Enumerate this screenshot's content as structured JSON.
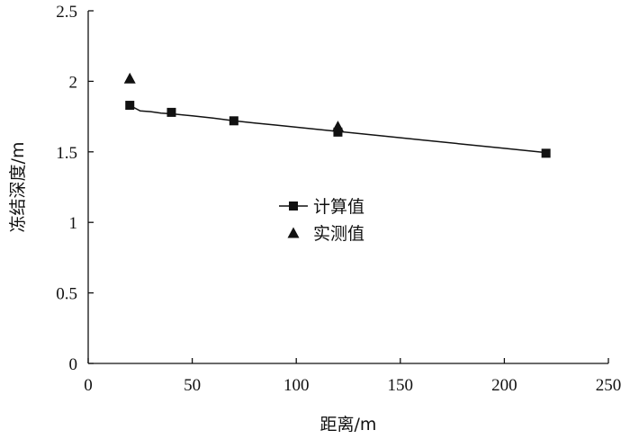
{
  "chart_data": {
    "type": "line",
    "title": "",
    "xlabel": "距离/m",
    "ylabel": "冻结深度/m",
    "xlim": [
      0,
      250
    ],
    "ylim": [
      0,
      2.5
    ],
    "x_ticks": [
      0,
      50,
      100,
      150,
      200,
      250
    ],
    "y_ticks": [
      0,
      0.5,
      1,
      1.5,
      2,
      2.5
    ],
    "x_tick_labels": [
      "0",
      "50",
      "100",
      "150",
      "200",
      "250"
    ],
    "y_tick_labels": [
      "0",
      "0.5",
      "1",
      "1.5",
      "2",
      "2.5"
    ],
    "grid": false,
    "legend_position": "center-left",
    "series": [
      {
        "name": "计算值",
        "marker": "square",
        "line": true,
        "color": "#111111",
        "x": [
          20,
          40,
          70,
          120,
          220
        ],
        "y": [
          1.83,
          1.78,
          1.72,
          1.64,
          1.49
        ],
        "curve_x": [
          20,
          25,
          30,
          35,
          40,
          50,
          60,
          70,
          80,
          90,
          100,
          110,
          120,
          140,
          160,
          180,
          200,
          220
        ],
        "curve_y": [
          1.83,
          1.79,
          1.785,
          1.775,
          1.77,
          1.755,
          1.74,
          1.72,
          1.705,
          1.69,
          1.675,
          1.66,
          1.645,
          1.615,
          1.585,
          1.555,
          1.525,
          1.495
        ]
      },
      {
        "name": "实测值",
        "marker": "triangle",
        "line": false,
        "color": "#111111",
        "x": [
          20,
          120
        ],
        "y": [
          2.02,
          1.68
        ]
      }
    ]
  }
}
